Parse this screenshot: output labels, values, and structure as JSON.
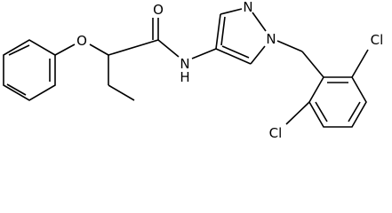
{
  "atoms": [
    "O",
    "O",
    "N",
    "H",
    "N",
    "N",
    "Cl",
    "Cl"
  ]
}
